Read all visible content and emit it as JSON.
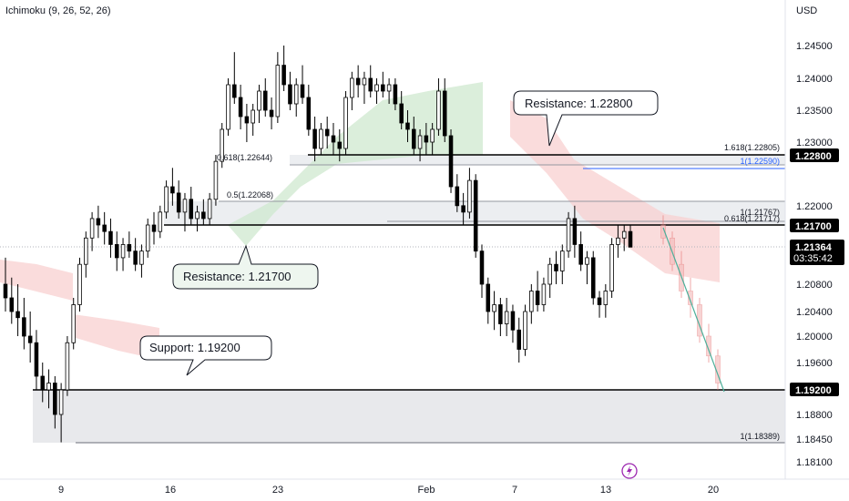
{
  "indicator_label": "Ichimoku (9, 26, 52, 26)",
  "currency": "USD",
  "icons": {
    "lightning": "lightning-icon"
  },
  "colors": {
    "bull": "#ffffff",
    "bear": "#000000",
    "cloud_bull": "#cfe8cf",
    "cloud_bear": "#f8d0d0",
    "support_zone": "#e8e9ec",
    "fib_blue": "#2962ff",
    "trend_line": "#4caf9a"
  },
  "chart_data": {
    "type": "candlestick",
    "title": "",
    "ylim": [
      1.177,
      1.25
    ],
    "y_ticks": [
      "1.24500",
      "1.24000",
      "1.23500",
      "1.23000",
      "1.22000",
      "1.20800",
      "1.20400",
      "1.20000",
      "1.19600",
      "1.18800",
      "1.18450",
      "1.18100"
    ],
    "x_ticks": [
      "9",
      "16",
      "23",
      "Feb",
      "7",
      "13",
      "20"
    ],
    "price_tags": [
      {
        "label": "1.22800",
        "value": 1.228
      },
      {
        "label": "1.21700",
        "value": 1.217
      },
      {
        "label": "1.21364",
        "value": 1.21364,
        "extra": "03:35:42"
      },
      {
        "label": "1.19200",
        "value": 1.192
      }
    ],
    "horizontal_levels": [
      {
        "name": "Resistance",
        "value": 1.228
      },
      {
        "name": "Resistance",
        "value": 1.217
      },
      {
        "name": "Support",
        "value": 1.192
      }
    ],
    "callouts": [
      {
        "text": "Resistance: 1.22800"
      },
      {
        "text": "Resistance: 1.21700"
      },
      {
        "text": "Support: 1.19200"
      }
    ],
    "fib_labels": [
      {
        "text": "0.618(1.22644)",
        "value": 1.22644
      },
      {
        "text": "0.5(1.22068)",
        "value": 1.22068
      },
      {
        "text": "1.618(1.22805)",
        "value": 1.22805
      },
      {
        "text": "1(1.22590)",
        "value": 1.2259
      },
      {
        "text": "1(1.21767)",
        "value": 1.21767
      },
      {
        "text": "0.618(1.21717)",
        "value": 1.21717
      },
      {
        "text": "1(1.18389)",
        "value": 1.18389
      }
    ],
    "candles": [
      [
        1.208,
        1.212,
        1.204,
        1.206
      ],
      [
        1.206,
        1.209,
        1.202,
        1.204
      ],
      [
        1.204,
        1.208,
        1.2,
        1.203
      ],
      [
        1.203,
        1.206,
        1.198,
        1.2
      ],
      [
        1.2,
        1.204,
        1.196,
        1.199
      ],
      [
        1.199,
        1.201,
        1.192,
        1.194
      ],
      [
        1.194,
        1.196,
        1.19,
        1.192
      ],
      [
        1.192,
        1.195,
        1.189,
        1.193
      ],
      [
        1.193,
        1.194,
        1.186,
        1.188
      ],
      [
        1.188,
        1.193,
        1.184,
        1.192
      ],
      [
        1.192,
        1.2,
        1.191,
        1.199
      ],
      [
        1.199,
        1.206,
        1.198,
        1.205
      ],
      [
        1.205,
        1.212,
        1.204,
        1.211
      ],
      [
        1.211,
        1.216,
        1.209,
        1.215
      ],
      [
        1.215,
        1.219,
        1.213,
        1.218
      ],
      [
        1.218,
        1.22,
        1.215,
        1.217
      ],
      [
        1.217,
        1.219,
        1.214,
        1.216
      ],
      [
        1.216,
        1.218,
        1.212,
        1.214
      ],
      [
        1.214,
        1.216,
        1.21,
        1.212
      ],
      [
        1.212,
        1.215,
        1.21,
        1.214
      ],
      [
        1.214,
        1.216,
        1.212,
        1.213
      ],
      [
        1.213,
        1.215,
        1.21,
        1.211
      ],
      [
        1.211,
        1.214,
        1.209,
        1.213
      ],
      [
        1.213,
        1.218,
        1.212,
        1.217
      ],
      [
        1.217,
        1.219,
        1.214,
        1.216
      ],
      [
        1.216,
        1.22,
        1.215,
        1.219
      ],
      [
        1.219,
        1.224,
        1.218,
        1.223
      ],
      [
        1.223,
        1.226,
        1.22,
        1.222
      ],
      [
        1.222,
        1.224,
        1.218,
        1.219
      ],
      [
        1.219,
        1.222,
        1.216,
        1.221
      ],
      [
        1.221,
        1.223,
        1.217,
        1.218
      ],
      [
        1.218,
        1.22,
        1.216,
        1.219
      ],
      [
        1.219,
        1.221,
        1.217,
        1.218
      ],
      [
        1.218,
        1.222,
        1.217,
        1.221
      ],
      [
        1.221,
        1.228,
        1.22,
        1.227
      ],
      [
        1.227,
        1.233,
        1.226,
        1.232
      ],
      [
        1.232,
        1.24,
        1.231,
        1.239
      ],
      [
        1.239,
        1.244,
        1.236,
        1.237
      ],
      [
        1.237,
        1.239,
        1.232,
        1.234
      ],
      [
        1.234,
        1.236,
        1.23,
        1.233
      ],
      [
        1.233,
        1.236,
        1.231,
        1.235
      ],
      [
        1.235,
        1.239,
        1.233,
        1.238
      ],
      [
        1.238,
        1.24,
        1.234,
        1.235
      ],
      [
        1.235,
        1.237,
        1.232,
        1.234
      ],
      [
        1.234,
        1.244,
        1.233,
        1.242
      ],
      [
        1.242,
        1.245,
        1.238,
        1.239
      ],
      [
        1.239,
        1.241,
        1.235,
        1.236
      ],
      [
        1.236,
        1.24,
        1.234,
        1.239
      ],
      [
        1.239,
        1.242,
        1.236,
        1.237
      ],
      [
        1.237,
        1.239,
        1.231,
        1.232
      ],
      [
        1.232,
        1.234,
        1.227,
        1.229
      ],
      [
        1.229,
        1.233,
        1.228,
        1.232
      ],
      [
        1.232,
        1.234,
        1.229,
        1.231
      ],
      [
        1.231,
        1.233,
        1.228,
        1.23
      ],
      [
        1.23,
        1.232,
        1.227,
        1.229
      ],
      [
        1.229,
        1.238,
        1.228,
        1.237
      ],
      [
        1.237,
        1.241,
        1.235,
        1.24
      ],
      [
        1.24,
        1.242,
        1.237,
        1.239
      ],
      [
        1.239,
        1.241,
        1.236,
        1.24
      ],
      [
        1.24,
        1.242,
        1.237,
        1.238
      ],
      [
        1.238,
        1.24,
        1.236,
        1.239
      ],
      [
        1.239,
        1.241,
        1.237,
        1.238
      ],
      [
        1.238,
        1.24,
        1.236,
        1.239
      ],
      [
        1.239,
        1.24,
        1.235,
        1.236
      ],
      [
        1.236,
        1.238,
        1.232,
        1.233
      ],
      [
        1.233,
        1.235,
        1.23,
        1.232
      ],
      [
        1.232,
        1.234,
        1.228,
        1.229
      ],
      [
        1.229,
        1.232,
        1.227,
        1.231
      ],
      [
        1.231,
        1.233,
        1.228,
        1.23
      ],
      [
        1.23,
        1.233,
        1.228,
        1.232
      ],
      [
        1.232,
        1.24,
        1.231,
        1.238
      ],
      [
        1.238,
        1.24,
        1.23,
        1.231
      ],
      [
        1.231,
        1.232,
        1.222,
        1.223
      ],
      [
        1.223,
        1.225,
        1.219,
        1.22
      ],
      [
        1.22,
        1.222,
        1.217,
        1.219
      ],
      [
        1.219,
        1.226,
        1.218,
        1.224
      ],
      [
        1.224,
        1.225,
        1.212,
        1.213
      ],
      [
        1.213,
        1.214,
        1.206,
        1.208
      ],
      [
        1.208,
        1.209,
        1.202,
        1.204
      ],
      [
        1.204,
        1.207,
        1.201,
        1.205
      ],
      [
        1.205,
        1.206,
        1.2,
        1.202
      ],
      [
        1.202,
        1.206,
        1.2,
        1.204
      ],
      [
        1.204,
        1.205,
        1.199,
        1.201
      ],
      [
        1.201,
        1.203,
        1.196,
        1.198
      ],
      [
        1.198,
        1.205,
        1.197,
        1.204
      ],
      [
        1.204,
        1.208,
        1.202,
        1.207
      ],
      [
        1.207,
        1.21,
        1.204,
        1.205
      ],
      [
        1.205,
        1.209,
        1.204,
        1.208
      ],
      [
        1.208,
        1.212,
        1.206,
        1.211
      ],
      [
        1.211,
        1.213,
        1.208,
        1.21
      ],
      [
        1.21,
        1.214,
        1.208,
        1.213
      ],
      [
        1.213,
        1.219,
        1.212,
        1.218
      ],
      [
        1.218,
        1.22,
        1.212,
        1.214
      ],
      [
        1.214,
        1.216,
        1.21,
        1.211
      ],
      [
        1.211,
        1.213,
        1.208,
        1.212
      ],
      [
        1.212,
        1.213,
        1.205,
        1.206
      ],
      [
        1.206,
        1.207,
        1.203,
        1.205
      ],
      [
        1.205,
        1.208,
        1.203,
        1.207
      ],
      [
        1.207,
        1.215,
        1.206,
        1.214
      ],
      [
        1.214,
        1.217,
        1.212,
        1.215
      ],
      [
        1.215,
        1.217,
        1.213,
        1.216
      ],
      [
        1.216,
        1.217,
        1.214,
        1.2136
      ]
    ]
  }
}
